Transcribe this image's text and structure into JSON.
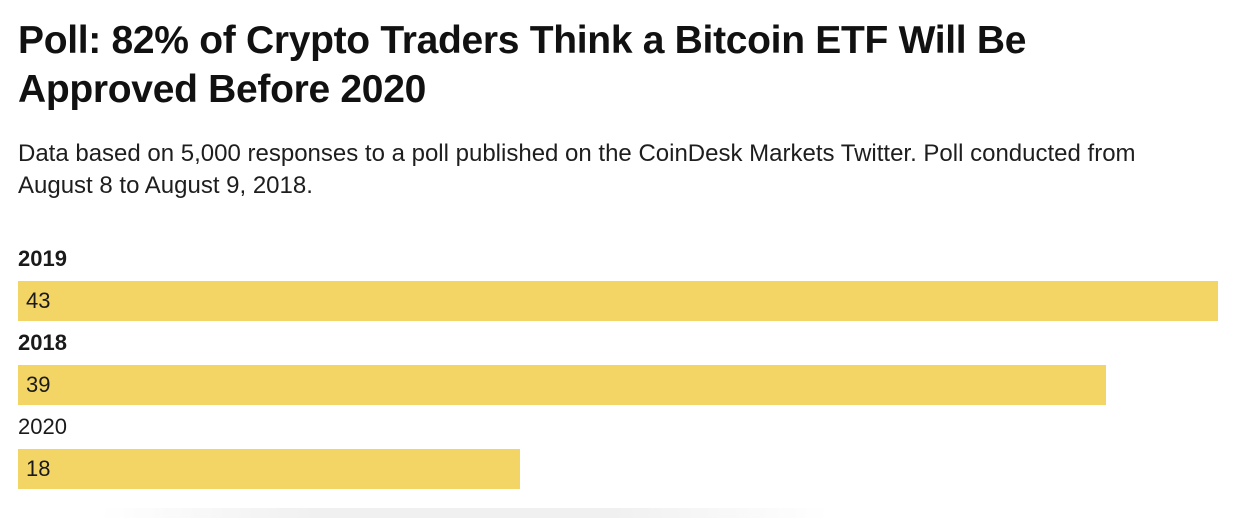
{
  "chart_data": {
    "type": "bar",
    "orientation": "horizontal",
    "title": "Poll: 82% of Crypto Traders Think a Bitcoin ETF Will Be Approved Before 2020",
    "subtitle": "Data based on 5,000 responses to a poll published on the CoinDesk Markets Twitter. Poll conducted from August 8 to August 9, 2018.",
    "categories": [
      "2019",
      "2018",
      "2020"
    ],
    "values": [
      43,
      39,
      18
    ],
    "bold_categories": [
      "2019",
      "2018"
    ],
    "bar_color": "#f2d565",
    "xlim": [
      0,
      43
    ],
    "grid": false,
    "legend": "none"
  }
}
